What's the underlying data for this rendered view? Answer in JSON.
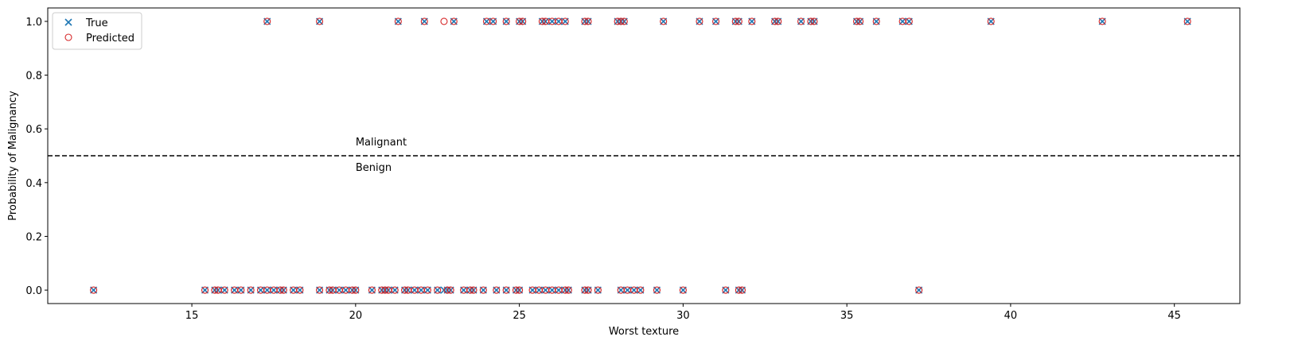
{
  "chart_data": {
    "type": "scatter",
    "title": "",
    "xlabel": "Worst texture",
    "ylabel": "Probability of Malignancy",
    "xlim": [
      10.6,
      47.0
    ],
    "ylim": [
      -0.05,
      1.05
    ],
    "xticks": [
      15,
      20,
      25,
      30,
      35,
      40,
      45
    ],
    "yticks": [
      0.0,
      0.2,
      0.4,
      0.6,
      0.8,
      1.0
    ],
    "xtick_labels": [
      "15",
      "20",
      "25",
      "30",
      "35",
      "40",
      "45"
    ],
    "ytick_labels": [
      "0.0",
      "0.2",
      "0.4",
      "0.6",
      "0.8",
      "1.0"
    ],
    "threshold": 0.5,
    "annotations": [
      {
        "text": "Malignant",
        "x": 20.0,
        "y": 0.53
      },
      {
        "text": "Benign",
        "x": 20.0,
        "y": 0.47
      }
    ],
    "legend": {
      "placement": "top-left",
      "entries": [
        {
          "label": "True",
          "marker": "x",
          "color": "#1f77b4"
        },
        {
          "label": "Predicted",
          "marker": "o",
          "color": "#d62728"
        }
      ]
    },
    "series": [
      {
        "name": "True",
        "marker": "x",
        "color": "#1f77b4",
        "points": [
          [
            17.3,
            1
          ],
          [
            18.9,
            1
          ],
          [
            21.3,
            1
          ],
          [
            22.1,
            1
          ],
          [
            23.0,
            1
          ],
          [
            24.0,
            1
          ],
          [
            24.2,
            1
          ],
          [
            24.6,
            1
          ],
          [
            25.0,
            1
          ],
          [
            25.1,
            1
          ],
          [
            25.7,
            1
          ],
          [
            25.8,
            1
          ],
          [
            26.0,
            1
          ],
          [
            26.2,
            1
          ],
          [
            26.4,
            1
          ],
          [
            27.0,
            1
          ],
          [
            27.1,
            1
          ],
          [
            28.0,
            1
          ],
          [
            28.1,
            1
          ],
          [
            28.2,
            1
          ],
          [
            29.4,
            1
          ],
          [
            30.5,
            1
          ],
          [
            31.0,
            1
          ],
          [
            31.6,
            1
          ],
          [
            31.7,
            1
          ],
          [
            32.1,
            1
          ],
          [
            32.8,
            1
          ],
          [
            32.9,
            1
          ],
          [
            33.6,
            1
          ],
          [
            33.9,
            1
          ],
          [
            34.0,
            1
          ],
          [
            35.3,
            1
          ],
          [
            35.4,
            1
          ],
          [
            35.9,
            1
          ],
          [
            36.7,
            1
          ],
          [
            36.9,
            1
          ],
          [
            39.4,
            1
          ],
          [
            42.8,
            1
          ],
          [
            45.4,
            1
          ],
          [
            12.0,
            0
          ],
          [
            15.4,
            0
          ],
          [
            15.7,
            0
          ],
          [
            15.8,
            0
          ],
          [
            16.0,
            0
          ],
          [
            16.3,
            0
          ],
          [
            16.5,
            0
          ],
          [
            16.8,
            0
          ],
          [
            17.1,
            0
          ],
          [
            17.3,
            0
          ],
          [
            17.5,
            0
          ],
          [
            17.7,
            0
          ],
          [
            17.8,
            0
          ],
          [
            18.1,
            0
          ],
          [
            18.3,
            0
          ],
          [
            18.9,
            0
          ],
          [
            19.2,
            0
          ],
          [
            19.3,
            0
          ],
          [
            19.5,
            0
          ],
          [
            19.7,
            0
          ],
          [
            19.9,
            0
          ],
          [
            20.0,
            0
          ],
          [
            20.5,
            0
          ],
          [
            20.8,
            0
          ],
          [
            20.9,
            0
          ],
          [
            21.0,
            0
          ],
          [
            21.2,
            0
          ],
          [
            21.5,
            0
          ],
          [
            21.6,
            0
          ],
          [
            21.8,
            0
          ],
          [
            22.0,
            0
          ],
          [
            22.2,
            0
          ],
          [
            22.5,
            0
          ],
          [
            22.7,
            0
          ],
          [
            22.8,
            0
          ],
          [
            22.9,
            0
          ],
          [
            23.3,
            0
          ],
          [
            23.5,
            0
          ],
          [
            23.6,
            0
          ],
          [
            23.9,
            0
          ],
          [
            24.3,
            0
          ],
          [
            24.6,
            0
          ],
          [
            24.9,
            0
          ],
          [
            25.0,
            0
          ],
          [
            25.4,
            0
          ],
          [
            25.6,
            0
          ],
          [
            25.8,
            0
          ],
          [
            26.0,
            0
          ],
          [
            26.2,
            0
          ],
          [
            26.4,
            0
          ],
          [
            26.5,
            0
          ],
          [
            27.0,
            0
          ],
          [
            27.1,
            0
          ],
          [
            27.4,
            0
          ],
          [
            28.1,
            0
          ],
          [
            28.3,
            0
          ],
          [
            28.5,
            0
          ],
          [
            28.7,
            0
          ],
          [
            29.2,
            0
          ],
          [
            30.0,
            0
          ],
          [
            31.3,
            0
          ],
          [
            31.7,
            0
          ],
          [
            31.8,
            0
          ],
          [
            37.2,
            0
          ]
        ]
      },
      {
        "name": "Predicted",
        "marker": "o",
        "color": "#d62728",
        "points": [
          [
            17.3,
            1
          ],
          [
            18.9,
            1
          ],
          [
            21.3,
            1
          ],
          [
            22.1,
            1
          ],
          [
            22.7,
            1
          ],
          [
            23.0,
            1
          ],
          [
            24.0,
            1
          ],
          [
            24.2,
            1
          ],
          [
            24.6,
            1
          ],
          [
            25.0,
            1
          ],
          [
            25.1,
            1
          ],
          [
            25.7,
            1
          ],
          [
            25.8,
            1
          ],
          [
            26.0,
            1
          ],
          [
            26.2,
            1
          ],
          [
            26.4,
            1
          ],
          [
            27.0,
            1
          ],
          [
            27.1,
            1
          ],
          [
            28.0,
            1
          ],
          [
            28.1,
            1
          ],
          [
            28.2,
            1
          ],
          [
            29.4,
            1
          ],
          [
            30.5,
            1
          ],
          [
            31.0,
            1
          ],
          [
            31.6,
            1
          ],
          [
            31.7,
            1
          ],
          [
            32.1,
            1
          ],
          [
            32.8,
            1
          ],
          [
            32.9,
            1
          ],
          [
            33.6,
            1
          ],
          [
            33.9,
            1
          ],
          [
            34.0,
            1
          ],
          [
            35.3,
            1
          ],
          [
            35.4,
            1
          ],
          [
            35.9,
            1
          ],
          [
            36.7,
            1
          ],
          [
            36.9,
            1
          ],
          [
            39.4,
            1
          ],
          [
            42.8,
            1
          ],
          [
            45.4,
            1
          ],
          [
            12.0,
            0
          ],
          [
            15.4,
            0
          ],
          [
            15.7,
            0
          ],
          [
            15.8,
            0
          ],
          [
            16.0,
            0
          ],
          [
            16.3,
            0
          ],
          [
            16.5,
            0
          ],
          [
            16.8,
            0
          ],
          [
            17.1,
            0
          ],
          [
            17.3,
            0
          ],
          [
            17.5,
            0
          ],
          [
            17.7,
            0
          ],
          [
            17.8,
            0
          ],
          [
            18.1,
            0
          ],
          [
            18.3,
            0
          ],
          [
            18.9,
            0
          ],
          [
            19.2,
            0
          ],
          [
            19.3,
            0
          ],
          [
            19.5,
            0
          ],
          [
            19.7,
            0
          ],
          [
            19.9,
            0
          ],
          [
            20.0,
            0
          ],
          [
            20.5,
            0
          ],
          [
            20.8,
            0
          ],
          [
            20.9,
            0
          ],
          [
            21.0,
            0
          ],
          [
            21.2,
            0
          ],
          [
            21.5,
            0
          ],
          [
            21.6,
            0
          ],
          [
            21.8,
            0
          ],
          [
            22.0,
            0
          ],
          [
            22.2,
            0
          ],
          [
            22.5,
            0
          ],
          [
            22.8,
            0
          ],
          [
            22.9,
            0
          ],
          [
            23.3,
            0
          ],
          [
            23.5,
            0
          ],
          [
            23.6,
            0
          ],
          [
            23.9,
            0
          ],
          [
            24.3,
            0
          ],
          [
            24.6,
            0
          ],
          [
            24.9,
            0
          ],
          [
            25.0,
            0
          ],
          [
            25.4,
            0
          ],
          [
            25.6,
            0
          ],
          [
            25.8,
            0
          ],
          [
            26.0,
            0
          ],
          [
            26.2,
            0
          ],
          [
            26.4,
            0
          ],
          [
            26.5,
            0
          ],
          [
            27.0,
            0
          ],
          [
            27.1,
            0
          ],
          [
            27.4,
            0
          ],
          [
            28.1,
            0
          ],
          [
            28.3,
            0
          ],
          [
            28.5,
            0
          ],
          [
            28.7,
            0
          ],
          [
            29.2,
            0
          ],
          [
            30.0,
            0
          ],
          [
            31.3,
            0
          ],
          [
            31.7,
            0
          ],
          [
            31.8,
            0
          ],
          [
            37.2,
            0
          ]
        ]
      }
    ]
  }
}
